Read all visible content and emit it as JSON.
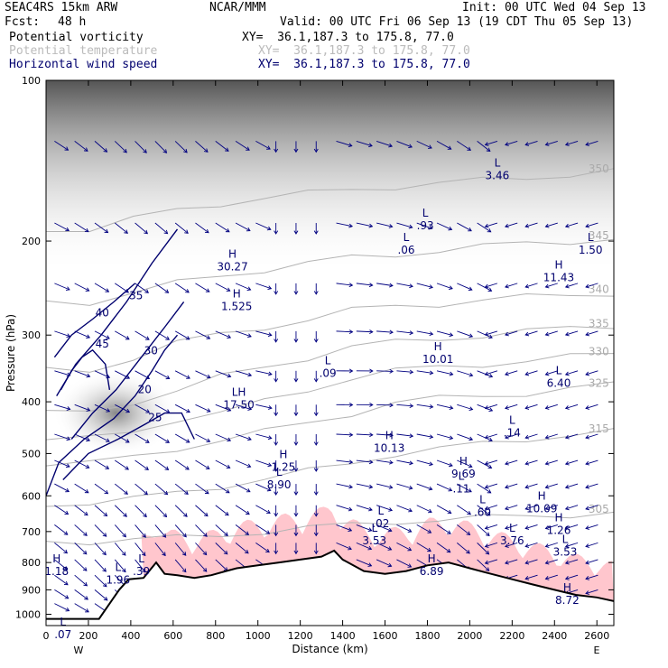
{
  "header": {
    "model": "SEAC4RS 15km ARW",
    "org": "NCAR/MMM",
    "init": "Init: 00 UTC Wed 04 Sep 13",
    "fcst_label": "Fcst:",
    "fcst_value": "48 h",
    "valid": "Valid: 00 UTC Fri 06 Sep 13 (19 CDT Thu 05 Sep 13)",
    "fields": [
      {
        "name": "Potential vorticity",
        "xy": "XY=  36.1,187.3 to 175.8, 77.0",
        "color": "#000000"
      },
      {
        "name": "Potential temperature",
        "xy": "XY=  36.1,187.3 to 175.8, 77.0",
        "color": "#bbbbbb"
      },
      {
        "name": "Horizontal wind speed",
        "xy": "XY=  36.1,187.3 to 175.8, 77.0",
        "color": "#00006e"
      }
    ]
  },
  "chart_data": {
    "type": "contour-cross-section",
    "xlabel": "Distance (km)",
    "ylabel": "Pressure (hPa)",
    "xlim": [
      0,
      2680
    ],
    "ylim": [
      1050,
      100
    ],
    "xticks": [
      "0",
      "200",
      "400",
      "600",
      "800",
      "1000",
      "1200",
      "1400",
      "1600",
      "1800",
      "2000",
      "2200",
      "2400",
      "2600"
    ],
    "yticks": [
      "100",
      "200",
      "300",
      "400",
      "500",
      "600",
      "700",
      "800",
      "900",
      "1000"
    ],
    "end_labels": {
      "left": "W",
      "right": "E"
    },
    "terrain_km_hpa": [
      [
        0,
        1020
      ],
      [
        110,
        1020
      ],
      [
        250,
        1020
      ],
      [
        345,
        900
      ],
      [
        390,
        860
      ],
      [
        460,
        855
      ],
      [
        520,
        800
      ],
      [
        560,
        840
      ],
      [
        620,
        845
      ],
      [
        700,
        855
      ],
      [
        780,
        845
      ],
      [
        850,
        830
      ],
      [
        900,
        820
      ],
      [
        1000,
        810
      ],
      [
        1100,
        800
      ],
      [
        1200,
        790
      ],
      [
        1300,
        780
      ],
      [
        1360,
        760
      ],
      [
        1400,
        790
      ],
      [
        1500,
        830
      ],
      [
        1600,
        840
      ],
      [
        1700,
        830
      ],
      [
        1800,
        810
      ],
      [
        1900,
        800
      ],
      [
        2000,
        820
      ],
      [
        2100,
        840
      ],
      [
        2200,
        860
      ],
      [
        2300,
        880
      ],
      [
        2400,
        900
      ],
      [
        2500,
        920
      ],
      [
        2600,
        930
      ],
      [
        2680,
        945
      ]
    ],
    "theta_contours_K": [
      {
        "label": "305",
        "p": [
          730,
          730,
          725,
          720,
          710,
          700,
          690,
          680,
          670,
          665,
          660,
          655,
          650,
          645
        ]
      },
      {
        "label": "315",
        "p": [
          620,
          620,
          610,
          590,
          575,
          560,
          540,
          520,
          500,
          490,
          480,
          470,
          460,
          455
        ]
      },
      {
        "label": "325",
        "p": [
          520,
          520,
          510,
          490,
          470,
          455,
          440,
          420,
          400,
          395,
          390,
          385,
          378,
          372
        ]
      },
      {
        "label": "330",
        "p": [
          470,
          470,
          455,
          430,
          420,
          400,
          380,
          360,
          350,
          345,
          340,
          335,
          330,
          325
        ]
      },
      {
        "label": "335",
        "p": [
          420,
          420,
          400,
          380,
          360,
          345,
          330,
          315,
          310,
          305,
          300,
          295,
          292,
          288
        ]
      },
      {
        "label": "340",
        "p": [
          350,
          350,
          330,
          310,
          300,
          290,
          280,
          270,
          265,
          262,
          258,
          255,
          252,
          250
        ]
      },
      {
        "label": "345",
        "p": [
          260,
          260,
          250,
          240,
          232,
          226,
          220,
          215,
          212,
          208,
          205,
          202,
          200,
          198
        ]
      },
      {
        "label": "350",
        "p": [
          190,
          190,
          182,
          175,
          170,
          166,
          163,
          160,
          158,
          156,
          154,
          152,
          150,
          148
        ]
      }
    ],
    "wind_speed_contours_ms": [
      {
        "label": "20",
        "points": [
          [
            0,
            600
          ],
          [
            60,
            520
          ],
          [
            180,
            470
          ],
          [
            320,
            430
          ],
          [
            420,
            390
          ],
          [
            500,
            350
          ],
          [
            560,
            320
          ],
          [
            620,
            300
          ]
        ]
      },
      {
        "label": "25",
        "points": [
          [
            80,
            560
          ],
          [
            200,
            500
          ],
          [
            340,
            470
          ],
          [
            470,
            440
          ],
          [
            560,
            420
          ],
          [
            640,
            420
          ],
          [
            700,
            470
          ]
        ]
      },
      {
        "label": "30",
        "points": [
          [
            120,
            470
          ],
          [
            220,
            420
          ],
          [
            330,
            380
          ],
          [
            450,
            330
          ],
          [
            560,
            290
          ],
          [
            650,
            260
          ]
        ]
      },
      {
        "label": "35",
        "points": [
          [
            50,
            390
          ],
          [
            140,
            340
          ],
          [
            260,
            300
          ],
          [
            380,
            260
          ],
          [
            500,
            220
          ],
          [
            620,
            190
          ]
        ]
      },
      {
        "label": "40",
        "points": [
          [
            40,
            330
          ],
          [
            120,
            300
          ],
          [
            220,
            280
          ],
          [
            320,
            260
          ],
          [
            420,
            240
          ]
        ]
      },
      {
        "label": "45",
        "points": [
          [
            70,
            380
          ],
          [
            120,
            350
          ],
          [
            170,
            330
          ],
          [
            220,
            320
          ],
          [
            280,
            340
          ],
          [
            300,
            380
          ]
        ]
      }
    ],
    "highs_lows": [
      {
        "kind": "H",
        "value": "1.18",
        "km": 50,
        "p": 800
      },
      {
        "kind": "L",
        "value": "1.96",
        "km": 340,
        "p": 830
      },
      {
        "kind": "L",
        "value": ".39",
        "km": 450,
        "p": 800
      },
      {
        "kind": "L",
        "value": ".07",
        "km": 80,
        "p": 1050
      },
      {
        "kind": "H",
        "value": "30.27",
        "km": 880,
        "p": 215
      },
      {
        "kind": "H",
        "value": "1.525",
        "km": 900,
        "p": 255
      },
      {
        "kind": "LH",
        "value": "17.50",
        "km": 910,
        "p": 390
      },
      {
        "kind": "L",
        "value": ".09",
        "km": 1330,
        "p": 340
      },
      {
        "kind": "H",
        "value": "1.25",
        "km": 1120,
        "p": 510
      },
      {
        "kind": "L",
        "value": "8.90",
        "km": 1100,
        "p": 550
      },
      {
        "kind": "L",
        "value": ".06",
        "km": 1700,
        "p": 200
      },
      {
        "kind": "L",
        "value": ".93",
        "km": 1790,
        "p": 180
      },
      {
        "kind": "H",
        "value": "10.01",
        "km": 1850,
        "p": 320
      },
      {
        "kind": "H",
        "value": "10.13",
        "km": 1620,
        "p": 470
      },
      {
        "kind": "H",
        "value": "9.69",
        "km": 1970,
        "p": 525
      },
      {
        "kind": "L",
        "value": "3.46",
        "km": 2130,
        "p": 145
      },
      {
        "kind": "H",
        "value": "11.43",
        "km": 2420,
        "p": 225
      },
      {
        "kind": "L",
        "value": "6.40",
        "km": 2420,
        "p": 355
      },
      {
        "kind": "L",
        "value": ".14",
        "km": 2200,
        "p": 440
      },
      {
        "kind": "L",
        "value": ".11",
        "km": 1960,
        "p": 560
      },
      {
        "kind": "L",
        "value": ".60",
        "km": 2060,
        "p": 620
      },
      {
        "kind": "H",
        "value": "10.09",
        "km": 2340,
        "p": 610
      },
      {
        "kind": "L",
        "value": ".02",
        "km": 1580,
        "p": 650
      },
      {
        "kind": "L",
        "value": "3.53",
        "km": 1550,
        "p": 700
      },
      {
        "kind": "L",
        "value": "3.76",
        "km": 2200,
        "p": 700
      },
      {
        "kind": "H",
        "value": "1.26",
        "km": 2420,
        "p": 670
      },
      {
        "kind": "L",
        "value": "3.53",
        "km": 2450,
        "p": 735
      },
      {
        "kind": "H",
        "value": "6.89",
        "km": 1820,
        "p": 800
      },
      {
        "kind": "H",
        "value": "8.72",
        "km": 2460,
        "p": 905
      },
      {
        "kind": "L",
        "value": "1.50",
        "km": 2570,
        "p": 200
      }
    ]
  }
}
